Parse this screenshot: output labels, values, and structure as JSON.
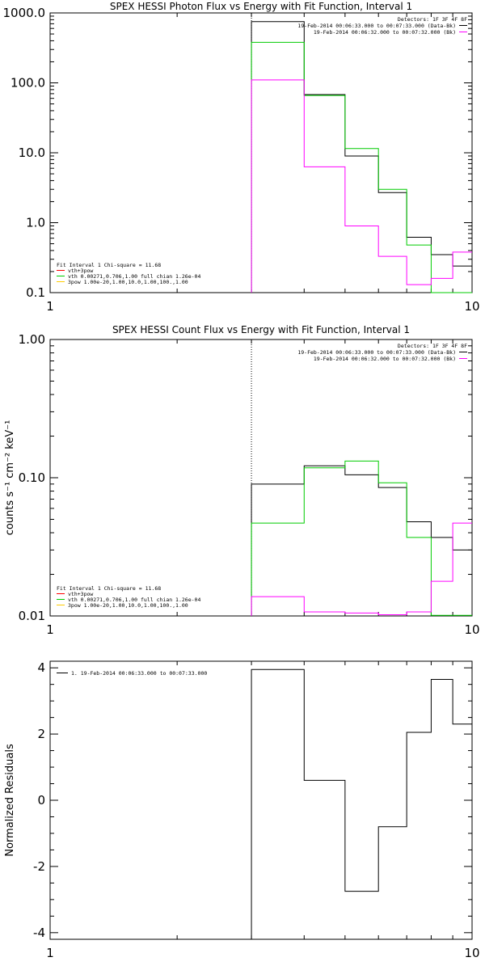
{
  "colors": {
    "background": "#ffffff",
    "axes": "#000000",
    "data": "#000000",
    "total_fit": "#00cc00",
    "component_vth": "#00cc00",
    "component_3pow": "#ffcc00",
    "background_model": "#ff00ff"
  },
  "chart_data": [
    {
      "type": "line",
      "title": "SPEX HESSI Photon Flux vs Energy with Fit Function, Interval 1",
      "xlabel": "",
      "ylabel": "",
      "xscale": "log",
      "yscale": "log",
      "xlim": [
        1,
        10
      ],
      "ylim": [
        0.1,
        1000
      ],
      "xticks": [
        1,
        10
      ],
      "xtick_labels": [
        "1",
        "10"
      ],
      "yticks": [
        0.1,
        1,
        10,
        100,
        1000
      ],
      "ytick_labels": [
        "0.1",
        "1.0",
        "10.0",
        "100.0",
        "1000.0"
      ],
      "vline": 3,
      "legend_top": {
        "header": "Detectors: 1F 3F 4F 8F",
        "entries": [
          {
            "text": "19-Feb-2014 00:06:33.000 to 00:07:33.000 (Data-Bk)",
            "color": "#000000"
          },
          {
            "text": "19-Feb-2014 00:06:32.000 to 00:07:32.000 (Bk)",
            "color": "#ff00ff"
          }
        ]
      },
      "legend_bottom": {
        "header": "Fit Interval 1   Chi-square = 11.68",
        "entries": [
          {
            "text": "vth+3pow",
            "color": "#ff0000"
          },
          {
            "text": "vth 0.00271,0.706,1.00  full chian 1.26e-04",
            "color": "#00cc00"
          },
          {
            "text": "3pow 1.00e-20,1.00,10.0,1.00,100.,1.00",
            "color": "#ffcc00"
          }
        ]
      },
      "bin_edges": [
        3,
        4,
        5,
        6,
        7,
        8,
        9,
        10
      ],
      "series": [
        {
          "role": "data",
          "color": "#000000",
          "values": [
            750,
            68,
            9,
            2.7,
            0.62,
            0.35,
            0.24
          ]
        },
        {
          "role": "fit",
          "color": "#00cc00",
          "values": [
            380,
            66,
            11.5,
            3.0,
            0.48,
            0.09,
            0.09
          ]
        },
        {
          "role": "background",
          "color": "#ff00ff",
          "values": [
            110,
            6.3,
            0.9,
            0.33,
            0.13,
            0.16,
            0.38
          ]
        }
      ]
    },
    {
      "type": "line",
      "title": "SPEX HESSI Count Flux vs Energy with Fit Function, Interval 1",
      "xlabel": "",
      "ylabel": "counts s⁻¹ cm⁻² keV⁻¹",
      "xscale": "log",
      "yscale": "log",
      "xlim": [
        1,
        10
      ],
      "ylim": [
        0.01,
        1.0
      ],
      "xticks": [
        1,
        10
      ],
      "xtick_labels": [
        "1",
        "10"
      ],
      "yticks": [
        0.01,
        0.1,
        1.0
      ],
      "ytick_labels": [
        "0.01",
        "0.10",
        "1.00"
      ],
      "vline": 3,
      "legend_top": {
        "header": "Detectors: 1F 3F 4F 8F",
        "entries": [
          {
            "text": "19-Feb-2014 00:06:33.000 to 00:07:33.000 (Data-Bk)",
            "color": "#000000"
          },
          {
            "text": "19-Feb-2014 00:06:32.000 to 00:07:32.000 (Bk)",
            "color": "#ff00ff"
          }
        ]
      },
      "legend_bottom": {
        "header": "Fit Interval 1   Chi-square = 11.68",
        "entries": [
          {
            "text": "vth+3pow",
            "color": "#ff0000"
          },
          {
            "text": "vth 0.00271,0.706,1.00  full chian 1.26e-04",
            "color": "#00cc00"
          },
          {
            "text": "3pow 1.00e-20,1.00,10.0,1.00,100.,1.00",
            "color": "#ffcc00"
          }
        ]
      },
      "bin_edges": [
        3,
        4,
        5,
        6,
        7,
        8,
        9,
        10
      ],
      "series": [
        {
          "role": "data",
          "color": "#000000",
          "values": [
            0.09,
            0.122,
            0.105,
            0.085,
            0.048,
            0.037,
            0.03
          ]
        },
        {
          "role": "fit",
          "color": "#00cc00",
          "values": [
            0.047,
            0.118,
            0.132,
            0.092,
            0.037,
            0.0101,
            0.0101
          ]
        },
        {
          "role": "background",
          "color": "#ff00ff",
          "values": [
            0.0138,
            0.0107,
            0.0105,
            0.0102,
            0.0107,
            0.0178,
            0.047
          ]
        }
      ]
    },
    {
      "type": "line",
      "title": "",
      "xlabel": "",
      "ylabel": "Normalized Residuals",
      "xscale": "log",
      "yscale": "linear",
      "xlim": [
        1,
        10
      ],
      "ylim": [
        -4.2,
        4.2
      ],
      "xticks": [
        1,
        10
      ],
      "xtick_labels": [
        "1",
        "10"
      ],
      "yticks": [
        -4,
        -2,
        0,
        2,
        4
      ],
      "ytick_labels": [
        "-4",
        "-2",
        "0",
        "2",
        "4"
      ],
      "legend_top": {
        "header": "",
        "entries": [
          {
            "text": "1. 19-Feb-2014 00:06:33.000 to 00:07:33.000",
            "color": "#000000"
          }
        ]
      },
      "bin_edges": [
        3,
        4,
        5,
        6,
        7,
        8,
        9,
        10
      ],
      "series": [
        {
          "role": "residuals",
          "color": "#000000",
          "values": [
            3.95,
            0.6,
            -2.75,
            -0.8,
            2.05,
            3.65,
            2.3
          ]
        }
      ]
    }
  ]
}
